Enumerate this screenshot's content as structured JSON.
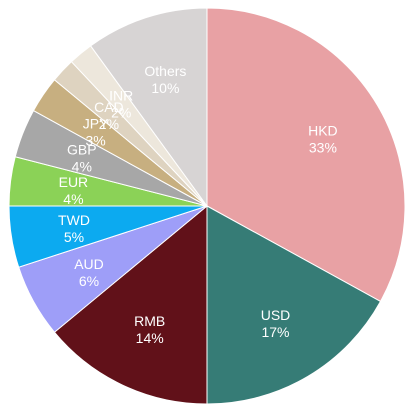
{
  "chart_data": {
    "type": "pie",
    "start": "12 o'clock",
    "direction": "clockwise",
    "slices": [
      {
        "label": "HKD",
        "value": 33,
        "value_label": "33%",
        "color": "#e8a1a4"
      },
      {
        "label": "USD",
        "value": 17,
        "value_label": "17%",
        "color": "#367c76"
      },
      {
        "label": "RMB",
        "value": 14,
        "value_label": "14%",
        "color": "#611119"
      },
      {
        "label": "AUD",
        "value": 6,
        "value_label": "6%",
        "color": "#9e9ef8"
      },
      {
        "label": "TWD",
        "value": 5,
        "value_label": "5%",
        "color": "#0caaf0"
      },
      {
        "label": "EUR",
        "value": 4,
        "value_label": "4%",
        "color": "#8bd257"
      },
      {
        "label": "GBP",
        "value": 4,
        "value_label": "4%",
        "color": "#a7a7a7"
      },
      {
        "label": "JPY",
        "value": 3,
        "value_label": "3%",
        "color": "#c7af80"
      },
      {
        "label": "CAD",
        "value": 2,
        "value_label": "2%",
        "color": "#ded3c0"
      },
      {
        "label": "INR",
        "value": 2,
        "value_label": "2%",
        "color": "#ede7dc"
      },
      {
        "label": "Others",
        "value": 10,
        "value_label": "10%",
        "color": "#d7d4d4"
      }
    ]
  }
}
